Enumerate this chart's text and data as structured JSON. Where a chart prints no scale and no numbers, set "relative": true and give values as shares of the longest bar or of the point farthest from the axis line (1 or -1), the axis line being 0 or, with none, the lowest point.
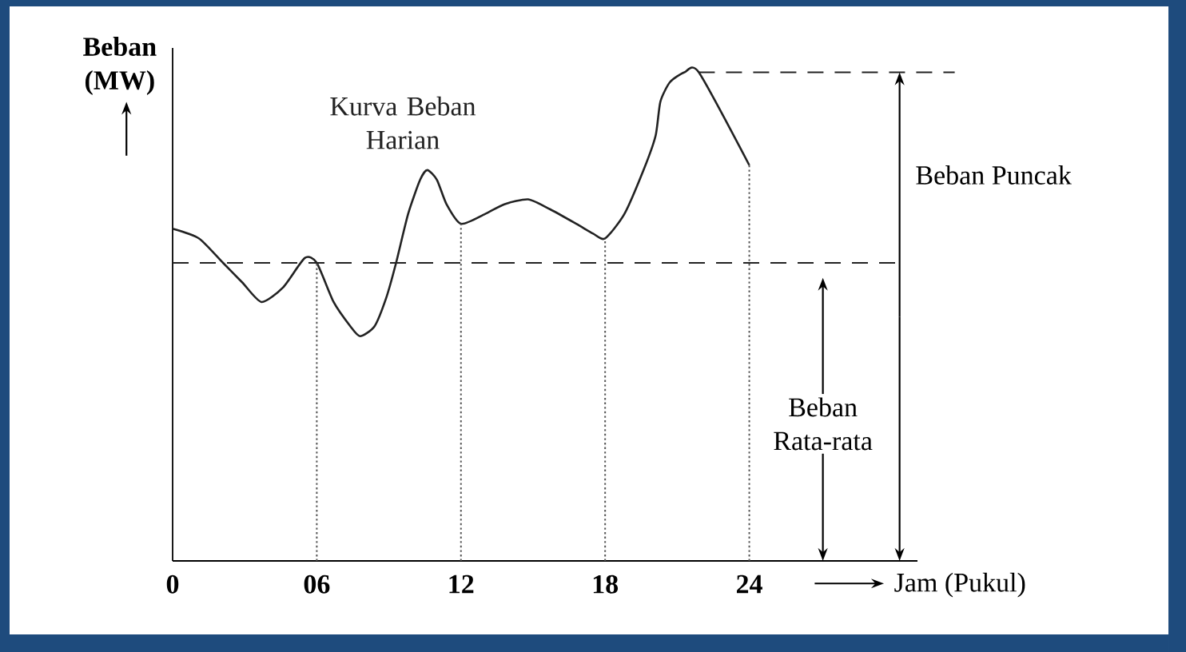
{
  "chart_data": {
    "type": "line",
    "xlabel": "Jam (Pukul)",
    "ylabel": "Beban (MW)",
    "relative": true,
    "x": [
      0,
      1.1,
      2.1,
      2.9,
      3.7,
      4.6,
      5.5,
      6,
      6.7,
      7.4,
      7.8,
      8.4,
      8.9,
      9.3,
      9.8,
      10.3,
      10.6,
      11,
      11.4,
      12,
      13,
      13.8,
      14.8,
      15.7,
      16.8,
      17.5,
      18,
      18.8,
      19.6,
      20.1,
      20.3,
      20.7,
      21.3,
      21.9,
      24
    ],
    "series": [
      {
        "name": "Kurva Beban Harian",
        "color": "#222222",
        "values": [
          0.68,
          0.66,
          0.61,
          0.57,
          0.53,
          0.56,
          0.62,
          0.61,
          0.53,
          0.48,
          0.46,
          0.48,
          0.54,
          0.61,
          0.71,
          0.78,
          0.8,
          0.78,
          0.73,
          0.69,
          0.71,
          0.73,
          0.74,
          0.72,
          0.69,
          0.67,
          0.66,
          0.71,
          0.8,
          0.87,
          0.94,
          0.98,
          1,
          1,
          0.81
        ]
      }
    ],
    "xlim": [
      0,
      31
    ],
    "xticks": [
      0,
      {
        "value": 6,
        "label": "06"
      },
      12,
      18,
      24
    ],
    "ref_lines": [
      {
        "axis": "y",
        "value": 0.61,
        "line_style": "dashed"
      },
      {
        "axis": "y",
        "value": 1,
        "line_style": "dashed"
      },
      {
        "axis": "x",
        "value": 6,
        "line_style": "dotted",
        "color": "#555555"
      },
      {
        "axis": "x",
        "value": 12,
        "line_style": "dotted",
        "color": "#555555"
      },
      {
        "axis": "x",
        "value": 18,
        "line_style": "dotted",
        "color": "#555555"
      },
      {
        "axis": "x",
        "value": 24,
        "line_style": "dotted",
        "color": "#555555"
      }
    ],
    "annotations": [
      "Beban Rata-rata",
      "Beban Puncak"
    ]
  }
}
